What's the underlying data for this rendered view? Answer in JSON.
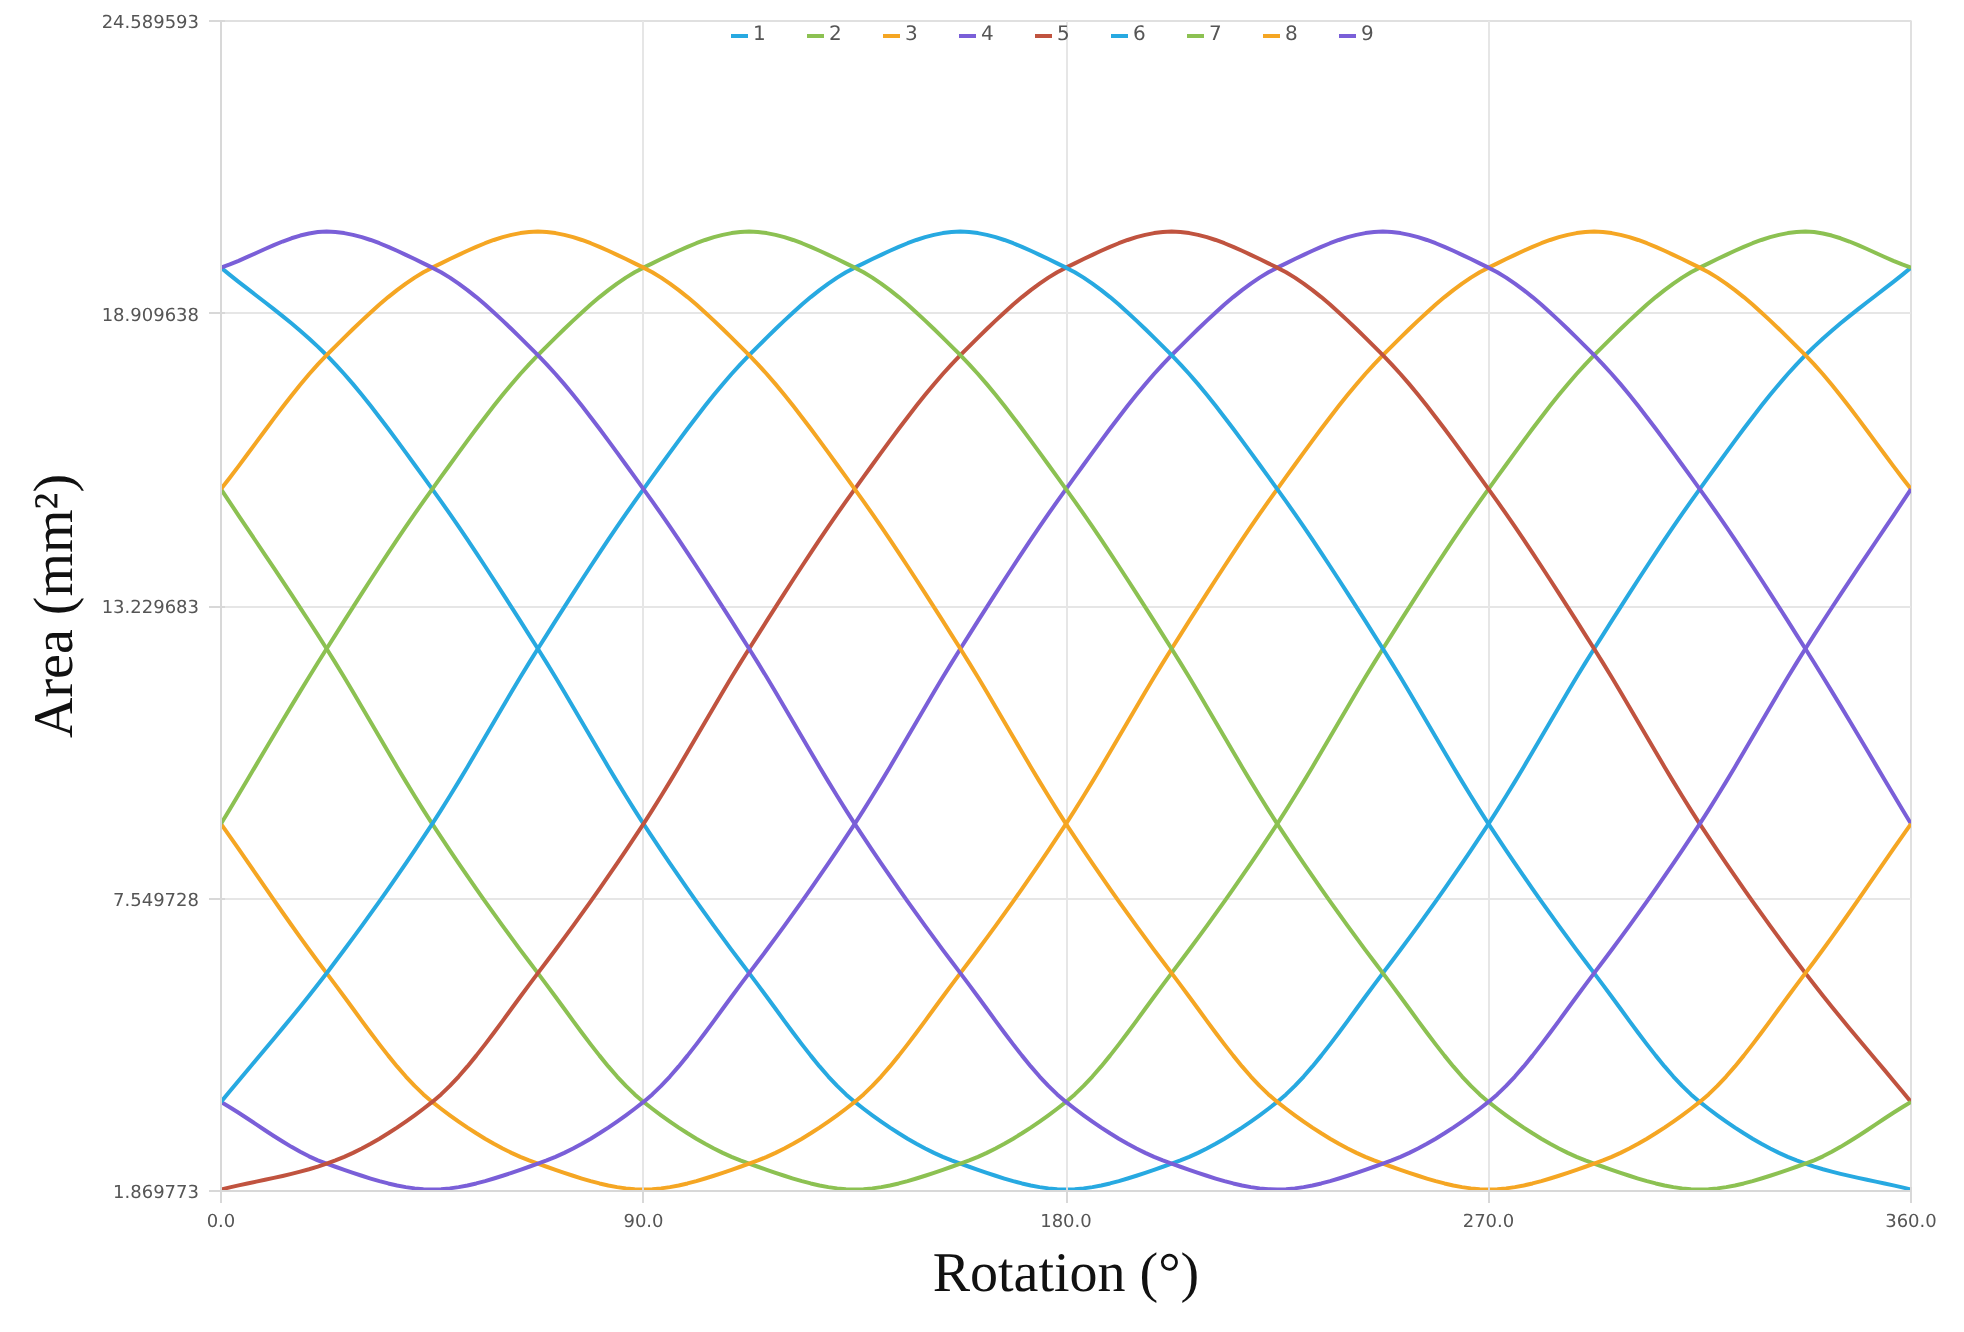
{
  "chart_data": {
    "type": "line",
    "xlabel": "Rotation (°)",
    "ylabel": "Area (mm²)",
    "x": [
      0,
      22.5,
      45,
      67.5,
      90,
      112.5,
      135,
      157.5,
      180,
      202.5,
      225,
      247.5,
      270,
      292.5,
      315,
      337.5,
      360
    ],
    "xlim": [
      0,
      360
    ],
    "xticks": [
      {
        "value": 0,
        "label": "0.0"
      },
      {
        "value": 90,
        "label": "90.0"
      },
      {
        "value": 180,
        "label": "180.0"
      },
      {
        "value": 270,
        "label": "270.0"
      },
      {
        "value": 360,
        "label": "360.0"
      }
    ],
    "ylim": [
      1.869773,
      24.589593
    ],
    "yticks": [
      1.869773,
      7.549728,
      13.229683,
      18.909638,
      24.589593
    ],
    "grid": true,
    "legend": "top",
    "marker": "none",
    "line_style": "solid",
    "series": [
      {
        "name": "1",
        "color": "#27a9e1",
        "values": [
          19.8,
          18.1,
          15.5,
          12.4,
          9.0,
          6.1,
          3.6,
          2.4,
          1.9,
          2.4,
          3.6,
          6.1,
          9.0,
          12.4,
          15.5,
          18.1,
          19.8
        ]
      },
      {
        "name": "2",
        "color": "#8cc152",
        "values": [
          15.5,
          12.4,
          9.0,
          6.1,
          3.6,
          2.4,
          1.9,
          2.4,
          3.6,
          6.1,
          9.0,
          12.4,
          15.5,
          18.1,
          19.8,
          20.5,
          19.8
        ]
      },
      {
        "name": "3",
        "color": "#f5a623",
        "values": [
          9.0,
          6.1,
          3.6,
          2.4,
          1.9,
          2.4,
          3.6,
          6.1,
          9.0,
          12.4,
          15.5,
          18.1,
          19.8,
          20.5,
          19.8,
          18.1,
          15.5
        ]
      },
      {
        "name": "4",
        "color": "#7a5fd8",
        "values": [
          3.6,
          2.4,
          1.9,
          2.4,
          3.6,
          6.1,
          9.0,
          12.4,
          15.5,
          18.1,
          19.8,
          20.5,
          19.8,
          18.1,
          15.5,
          12.4,
          9.0
        ]
      },
      {
        "name": "5",
        "color": "#c0533f",
        "values": [
          1.9,
          2.4,
          3.6,
          6.1,
          9.0,
          12.4,
          15.5,
          18.1,
          19.8,
          20.5,
          19.8,
          18.1,
          15.5,
          12.4,
          9.0,
          6.1,
          3.6
        ]
      },
      {
        "name": "6",
        "color": "#27a9e1",
        "values": [
          3.6,
          6.1,
          9.0,
          12.4,
          15.5,
          18.1,
          19.8,
          20.5,
          19.8,
          18.1,
          15.5,
          12.4,
          9.0,
          6.1,
          3.6,
          2.4,
          1.9
        ]
      },
      {
        "name": "7",
        "color": "#8cc152",
        "values": [
          9.0,
          12.4,
          15.5,
          18.1,
          19.8,
          20.5,
          19.8,
          18.1,
          15.5,
          12.4,
          9.0,
          6.1,
          3.6,
          2.4,
          1.9,
          2.4,
          3.6
        ]
      },
      {
        "name": "8",
        "color": "#f5a623",
        "values": [
          15.5,
          18.1,
          19.8,
          20.5,
          19.8,
          18.1,
          15.5,
          12.4,
          9.0,
          6.1,
          3.6,
          2.4,
          1.9,
          2.4,
          3.6,
          6.1,
          9.0
        ]
      },
      {
        "name": "9",
        "color": "#7a5fd8",
        "values": [
          19.8,
          20.5,
          19.8,
          18.1,
          15.5,
          12.4,
          9.0,
          6.1,
          3.6,
          2.4,
          1.9,
          2.4,
          3.6,
          6.1,
          9.0,
          12.4,
          15.5
        ]
      }
    ]
  }
}
